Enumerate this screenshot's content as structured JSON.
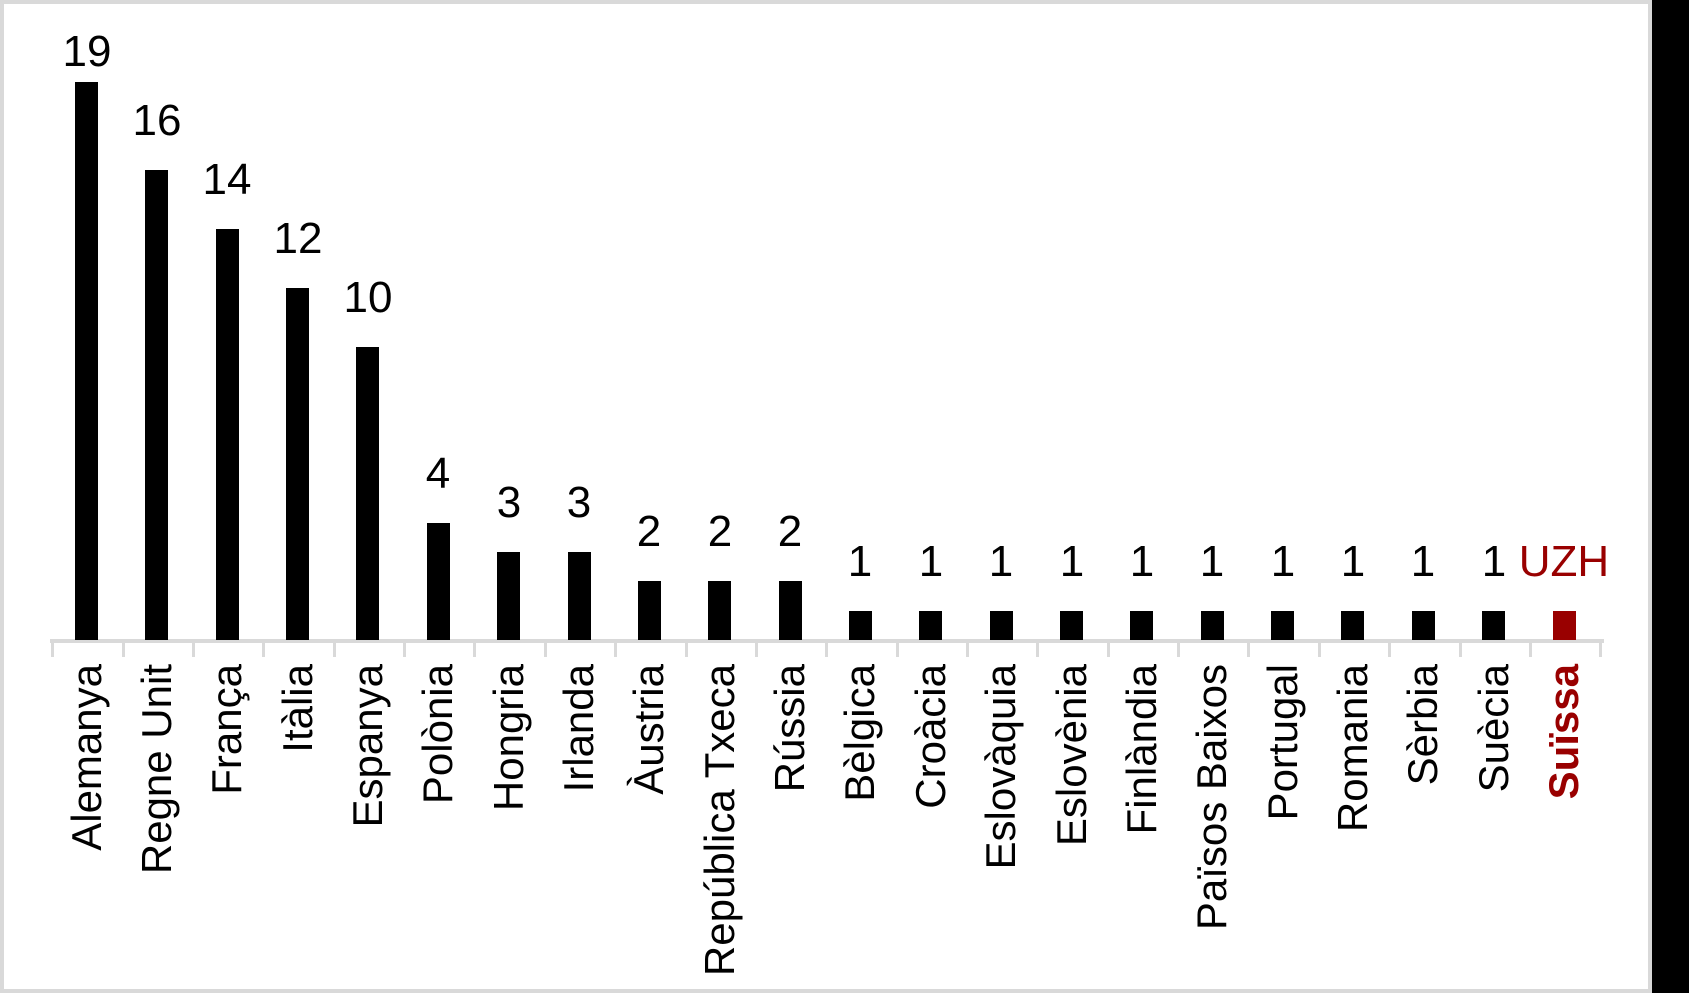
{
  "chart_data": {
    "type": "bar",
    "categories": [
      "Alemanya",
      "Regne Unit",
      "França",
      "Itàlia",
      "Espanya",
      "Polònia",
      "Hongria",
      "Irlanda",
      "Àustria",
      "República Txeca",
      "Rússia",
      "Bèlgica",
      "Croàcia",
      "Eslovàquia",
      "Eslovènia",
      "Finlàndia",
      "Països Baixos",
      "Portugal",
      "Romania",
      "Sèrbia",
      "Suècia",
      "Suïssa"
    ],
    "values": [
      19,
      16,
      14,
      12,
      10,
      4,
      3,
      3,
      2,
      2,
      2,
      1,
      1,
      1,
      1,
      1,
      1,
      1,
      1,
      1,
      1,
      1
    ],
    "bar_labels": [
      "19",
      "16",
      "14",
      "12",
      "10",
      "4",
      "3",
      "3",
      "2",
      "2",
      "2",
      "1",
      "1",
      "1",
      "1",
      "1",
      "1",
      "1",
      "1",
      "1",
      "1",
      "UZH"
    ],
    "title": "",
    "xlabel": "",
    "ylabel": "",
    "ylim": [
      0,
      19
    ],
    "grid": false,
    "legend": false,
    "value_labels_position": "outside-end",
    "highlight": {
      "category": "Suïssa",
      "index": 21,
      "label": "UZH",
      "color": "#990000"
    },
    "bar_color": "#000000",
    "axis_color": "#d9d9d9"
  }
}
